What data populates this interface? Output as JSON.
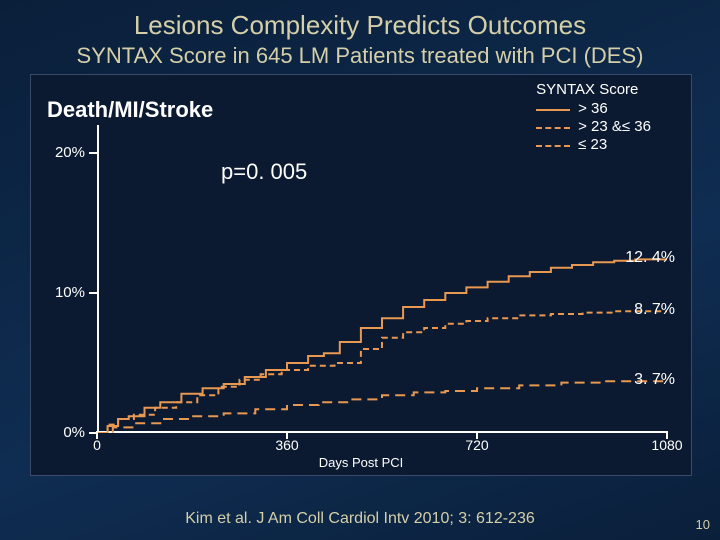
{
  "title": "Lesions Complexity Predicts Outcomes",
  "subtitle": "SYNTAX Score in 645 LM Patients treated with PCI (DES)",
  "citation": "Kim et al. J Am Coll Cardiol Intv 2010; 3: 612‑236",
  "slide_number": "10",
  "chart": {
    "type": "kaplan-meier-step",
    "outcome_label": "Death/MI/Stroke",
    "p_value": "p=0. 005",
    "legend_title": "SYNTAX Score",
    "background_color": "#0b1a30",
    "axis_color": "#ffffff",
    "tick_fontsize": 15,
    "label_fontsize": 15,
    "x": {
      "title": "Days Post PCI",
      "min": 0,
      "max": 1080,
      "ticks": [
        0,
        360,
        720,
        1080
      ]
    },
    "y": {
      "min": 0,
      "max": 0.22,
      "ticks": [
        {
          "v": 0.0,
          "label": "0%"
        },
        {
          "v": 0.1,
          "label": "10%"
        },
        {
          "v": 0.2,
          "label": "20%"
        }
      ]
    },
    "series": [
      {
        "name": "> 36",
        "color": "#e89850",
        "dash": "none",
        "width": 2,
        "end_label": "12. 4%",
        "points": [
          [
            0,
            0.0
          ],
          [
            20,
            0.005
          ],
          [
            40,
            0.01
          ],
          [
            60,
            0.012
          ],
          [
            90,
            0.018
          ],
          [
            120,
            0.022
          ],
          [
            160,
            0.028
          ],
          [
            200,
            0.032
          ],
          [
            240,
            0.035
          ],
          [
            280,
            0.04
          ],
          [
            320,
            0.045
          ],
          [
            360,
            0.05
          ],
          [
            400,
            0.055
          ],
          [
            430,
            0.057
          ],
          [
            460,
            0.065
          ],
          [
            500,
            0.075
          ],
          [
            540,
            0.082
          ],
          [
            580,
            0.09
          ],
          [
            620,
            0.095
          ],
          [
            660,
            0.1
          ],
          [
            700,
            0.104
          ],
          [
            740,
            0.108
          ],
          [
            780,
            0.112
          ],
          [
            820,
            0.115
          ],
          [
            860,
            0.118
          ],
          [
            900,
            0.12
          ],
          [
            940,
            0.122
          ],
          [
            980,
            0.123
          ],
          [
            1020,
            0.124
          ],
          [
            1080,
            0.124
          ]
        ]
      },
      {
        "name": "> 23 &≤ 36",
        "color": "#e89850",
        "dash": "6,4",
        "width": 2,
        "end_label": "8. 7%",
        "points": [
          [
            0,
            0.0
          ],
          [
            20,
            0.006
          ],
          [
            40,
            0.01
          ],
          [
            70,
            0.013
          ],
          [
            110,
            0.018
          ],
          [
            150,
            0.022
          ],
          [
            190,
            0.027
          ],
          [
            230,
            0.033
          ],
          [
            270,
            0.038
          ],
          [
            310,
            0.042
          ],
          [
            350,
            0.045
          ],
          [
            400,
            0.048
          ],
          [
            450,
            0.05
          ],
          [
            500,
            0.06
          ],
          [
            540,
            0.068
          ],
          [
            580,
            0.072
          ],
          [
            620,
            0.075
          ],
          [
            660,
            0.078
          ],
          [
            700,
            0.08
          ],
          [
            740,
            0.082
          ],
          [
            800,
            0.084
          ],
          [
            860,
            0.085
          ],
          [
            920,
            0.086
          ],
          [
            980,
            0.087
          ],
          [
            1040,
            0.087
          ],
          [
            1080,
            0.087
          ]
        ]
      },
      {
        "name": "≤ 23",
        "color": "#e89850",
        "dash": "10,6",
        "width": 2,
        "end_label": "3. 7%",
        "points": [
          [
            0,
            0.0
          ],
          [
            30,
            0.004
          ],
          [
            70,
            0.007
          ],
          [
            120,
            0.01
          ],
          [
            180,
            0.012
          ],
          [
            240,
            0.014
          ],
          [
            300,
            0.017
          ],
          [
            360,
            0.02
          ],
          [
            420,
            0.022
          ],
          [
            480,
            0.024
          ],
          [
            540,
            0.027
          ],
          [
            600,
            0.029
          ],
          [
            660,
            0.03
          ],
          [
            720,
            0.032
          ],
          [
            800,
            0.034
          ],
          [
            880,
            0.036
          ],
          [
            960,
            0.037
          ],
          [
            1080,
            0.037
          ]
        ]
      }
    ]
  }
}
